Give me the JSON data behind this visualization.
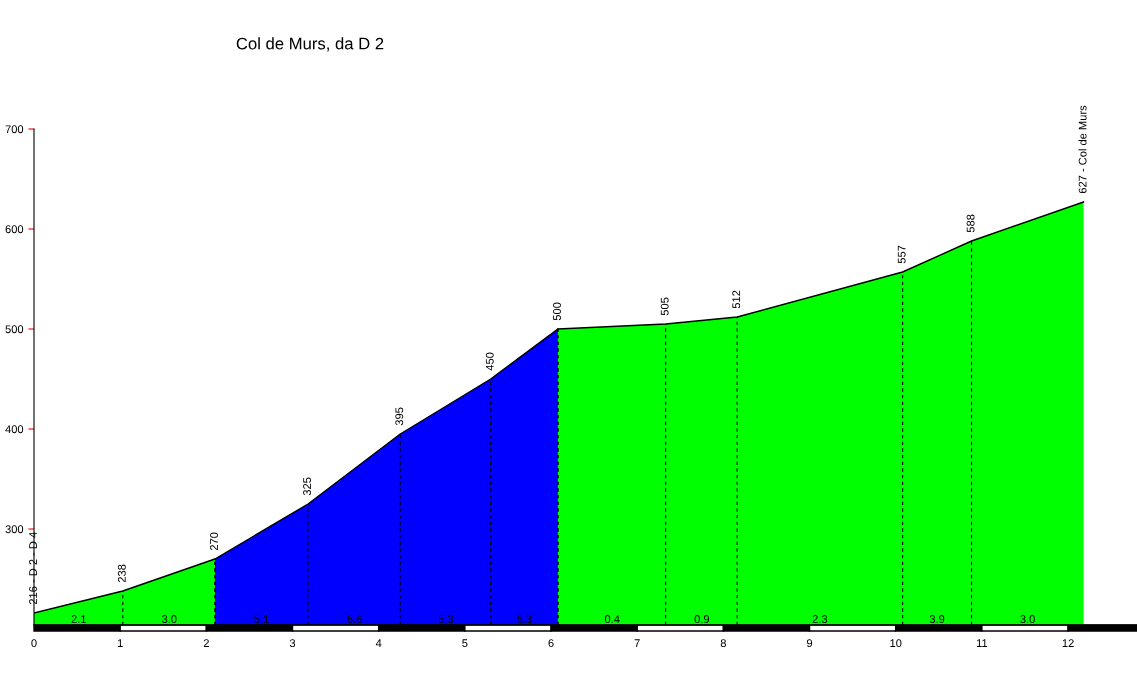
{
  "chart_data": {
    "type": "area",
    "title": "Col de Murs, da D 2",
    "series": [
      {
        "color": "#00ff00",
        "x": [
          0,
          1.03,
          2.1
        ],
        "values": [
          216,
          238,
          270
        ],
        "value_labels": [
          "216 - D 2 - D 4",
          "238",
          null
        ]
      },
      {
        "color": "#0000ff",
        "x": [
          2.1,
          3.18,
          4.25,
          5.3,
          6.08
        ],
        "values": [
          270,
          325,
          395,
          450,
          500
        ],
        "value_labels": [
          "270",
          "325",
          "395",
          "450",
          null
        ]
      },
      {
        "color": "#00ff00",
        "x": [
          6.08,
          7.33,
          8.16,
          10.08,
          10.88,
          12.18
        ],
        "values": [
          500,
          505,
          512,
          557,
          588,
          627
        ],
        "value_labels": [
          "500",
          "505",
          "512",
          "557",
          "588",
          "627 - Col de Murs"
        ]
      }
    ],
    "annotations": [
      {
        "text": "2.1",
        "x": 0.52,
        "y": 209
      },
      {
        "text": "3.0",
        "x": 1.57,
        "y": 209
      },
      {
        "text": "5.1",
        "x": 2.64,
        "y": 209
      },
      {
        "text": "6.6",
        "x": 3.72,
        "y": 209
      },
      {
        "text": "5.3",
        "x": 4.78,
        "y": 209
      },
      {
        "text": "6.3",
        "x": 5.69,
        "y": 209
      },
      {
        "text": "0.4",
        "x": 6.71,
        "y": 209
      },
      {
        "text": "0.9",
        "x": 7.75,
        "y": 209
      },
      {
        "text": "2.3",
        "x": 9.12,
        "y": 209
      },
      {
        "text": "3.9",
        "x": 10.48,
        "y": 209
      },
      {
        "text": "3.0",
        "x": 11.53,
        "y": 209
      }
    ],
    "xlim": [
      0,
      12.8
    ],
    "xticks": [
      0,
      1,
      2,
      3,
      4,
      5,
      6,
      7,
      8,
      9,
      10,
      11,
      12
    ],
    "ylim": [
      204,
      700
    ],
    "yticks": [
      300,
      400,
      500,
      600,
      700
    ],
    "grid": false,
    "legend": false
  }
}
